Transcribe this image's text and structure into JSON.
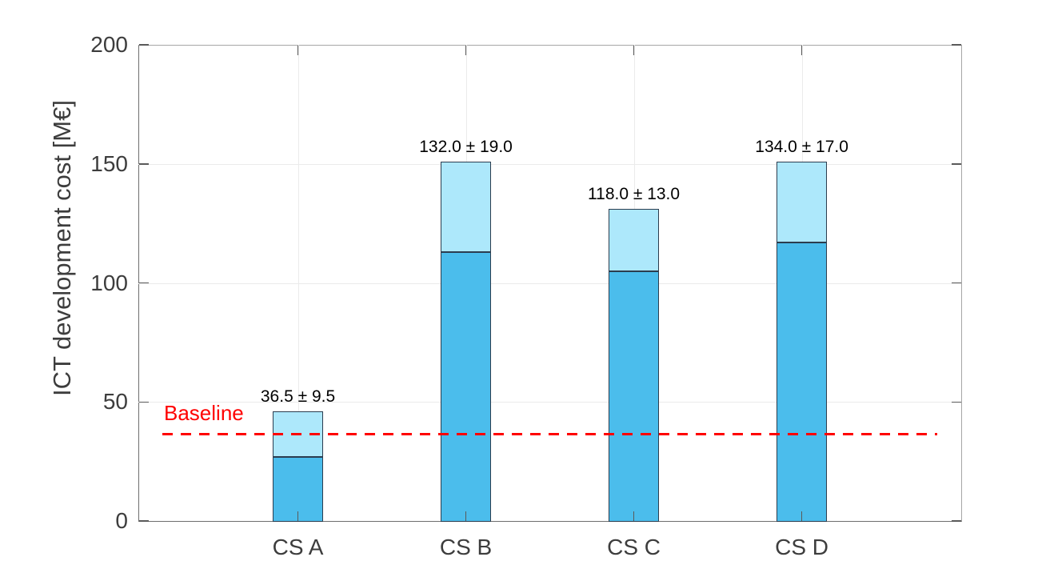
{
  "chart_data": {
    "type": "bar",
    "title": "",
    "xlabel": "",
    "ylabel": "ICT development cost [M€]",
    "categories": [
      "CS A",
      "CS B",
      "CS C",
      "CS D"
    ],
    "bars": [
      {
        "category": "CS A",
        "mean": 36.5,
        "error": 9.5,
        "lower": 27.0,
        "upper": 46.0,
        "label": "36.5 ± 9.5"
      },
      {
        "category": "CS B",
        "mean": 132.0,
        "error": 19.0,
        "lower": 113.0,
        "upper": 151.0,
        "label": "132.0 ± 19.0"
      },
      {
        "category": "CS C",
        "mean": 118.0,
        "error": 13.0,
        "lower": 105.0,
        "upper": 131.0,
        "label": "118.0 ± 13.0"
      },
      {
        "category": "CS D",
        "mean": 134.0,
        "error": 17.0,
        "lower": 117.0,
        "upper": 151.0,
        "label": "134.0 ± 17.0"
      }
    ],
    "baseline": {
      "label": "Baseline",
      "value": 36.5
    },
    "ylim": [
      0,
      200
    ],
    "yticks": [
      0,
      50,
      100,
      150,
      200
    ],
    "grid": true,
    "legend": "none"
  },
  "colors": {
    "bar_main": "#4BBDEC",
    "bar_range": "#ADE8FB",
    "bar_edge": "#2B3D4F",
    "grid": "#EBEBEB",
    "tick": "#5A5A5A",
    "tick_text": "#3D3D3D",
    "value_text": "#000000",
    "baseline": "#FF0000",
    "background": "#FFFFFF"
  }
}
